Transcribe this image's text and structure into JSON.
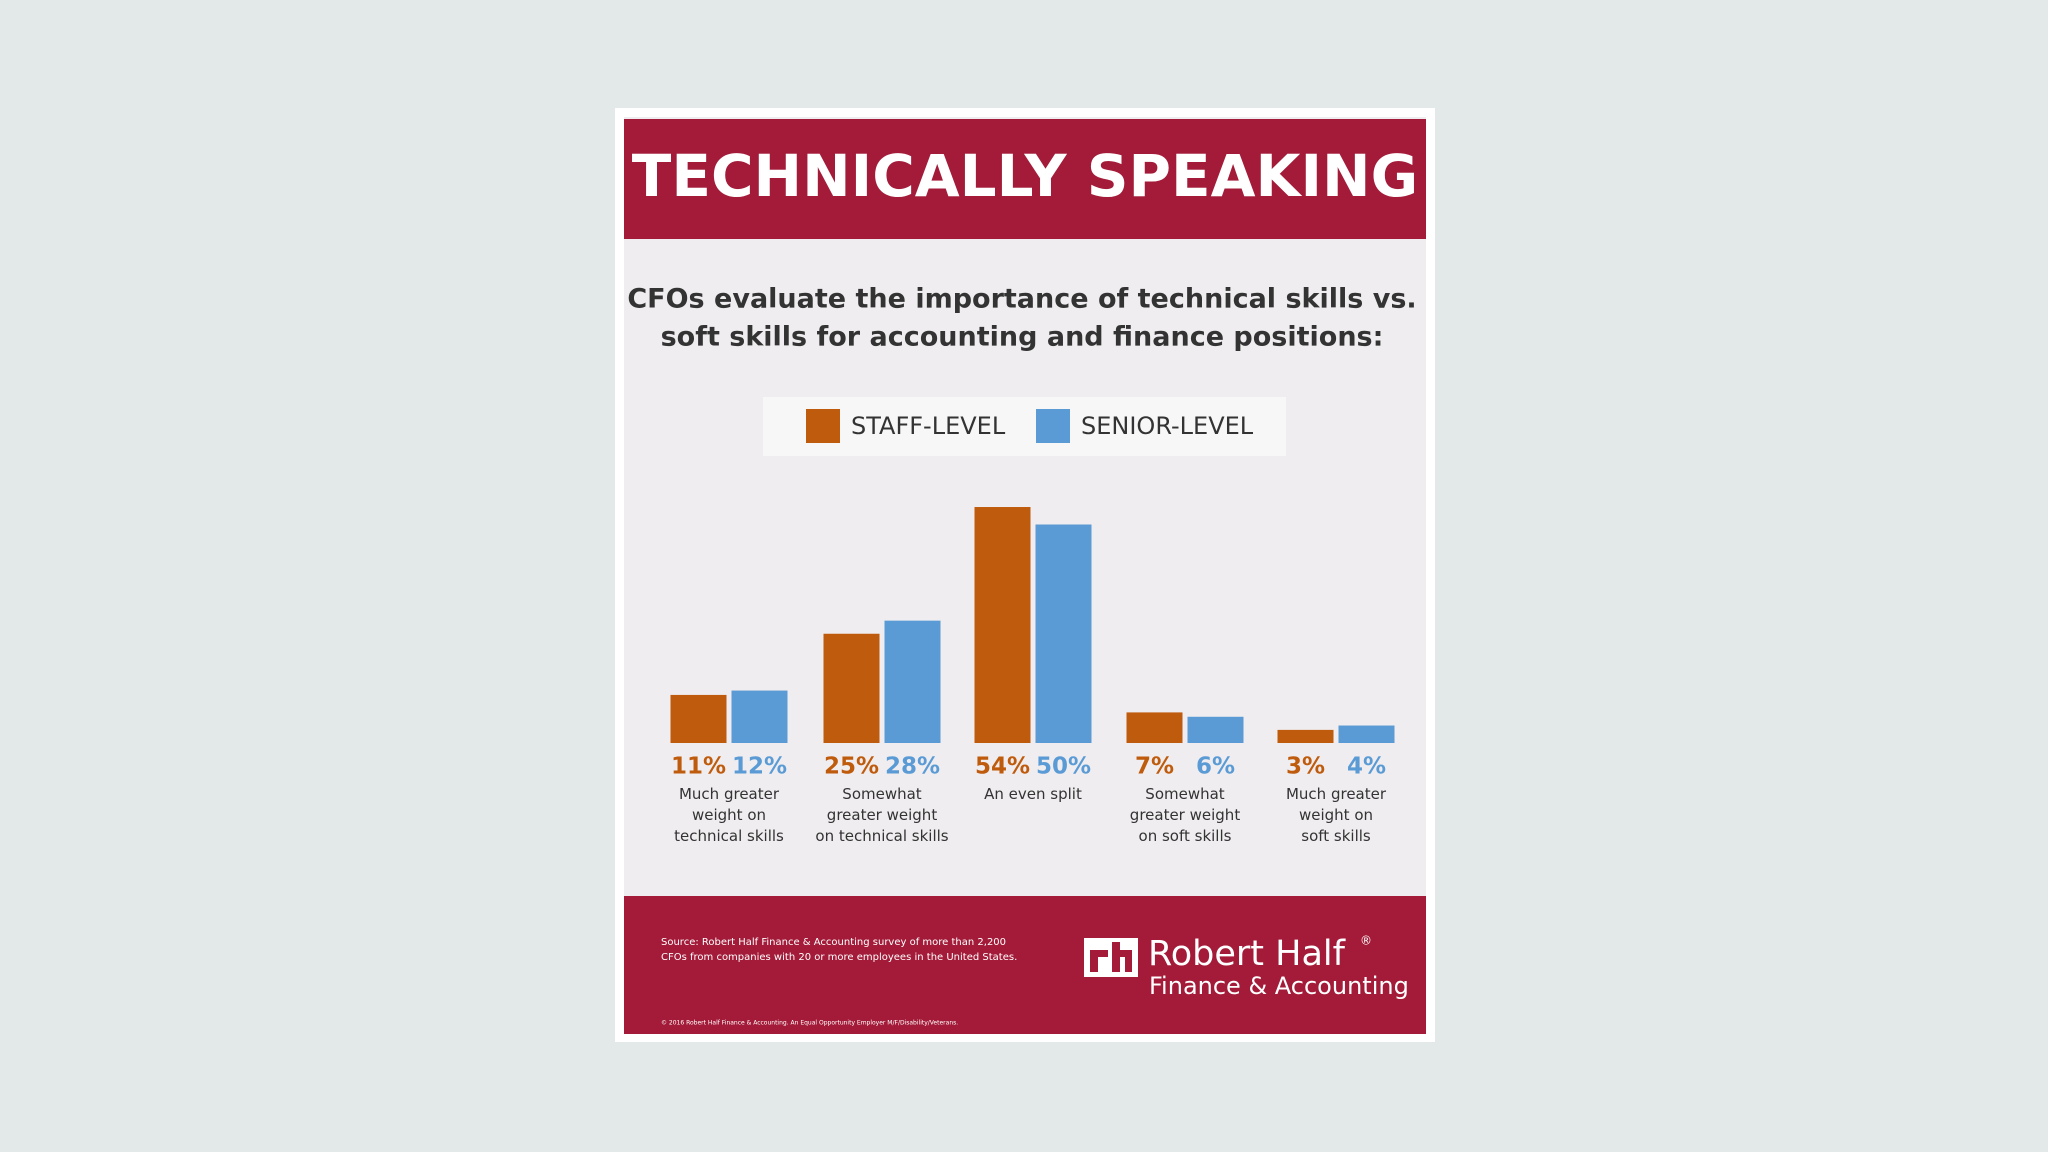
{
  "chart_data": {
    "type": "bar",
    "title": "TECHNICALLY SPEAKING",
    "subtitle": [
      "CFOs evaluate the importance of technical skills vs.",
      "soft skills for accounting and finance positions:"
    ],
    "categories": [
      "Much greater\nweight on\ntechnical skills",
      "Somewhat\ngreater weight\non technical skills",
      "An even split",
      "Somewhat\ngreater weight\non soft skills",
      "Much greater\nweight on\nsoft skills"
    ],
    "series": [
      {
        "name": "STAFF-LEVEL",
        "color": "#bf5b0c",
        "values": [
          11,
          25,
          54,
          7,
          3
        ],
        "value_labels": [
          "11%",
          "25%",
          "54%",
          "7%",
          "3%"
        ]
      },
      {
        "name": "SENIOR-LEVEL",
        "color": "#5b9bd5",
        "values": [
          12,
          28,
          50,
          6,
          4
        ],
        "value_labels": [
          "12%",
          "28%",
          "50%",
          "6%",
          "4%"
        ]
      }
    ],
    "legend": "top"
  },
  "footer": {
    "source": [
      "Source: Robert Half Finance & Accounting survey of more than 2,200",
      "CFOs from companies with 20 or more employees in the United States."
    ],
    "brand": "Robert Half",
    "registered": "®",
    "division": "Finance & Accounting",
    "copyright": "© 2016 Robert Half Finance & Accounting. An Equal Opportunity Employer M/F/Disability/Veterans."
  }
}
